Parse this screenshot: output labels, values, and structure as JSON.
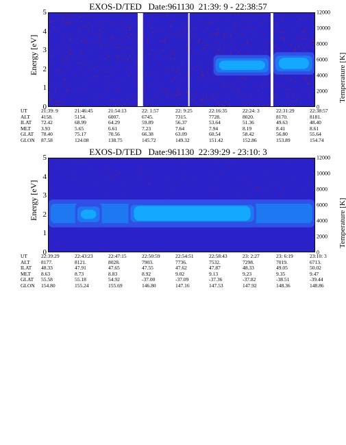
{
  "colors": {
    "background": "#2a22c8",
    "band_outer": "#2f4fe6",
    "band_mid": "#1e78f2",
    "band_core": "#15a8ff",
    "noise": "#9a1a3c",
    "gap": "#ffffff"
  },
  "chart_data": [
    {
      "type": "heatmap",
      "title": "EXOS-D/TED   Date:961130  21:39: 9 - 22:38:57",
      "ylabel": "Energy [eV]",
      "y2label": "Temperature [K]",
      "ylim": [
        0,
        5
      ],
      "y2lim": [
        0,
        12000
      ],
      "yticks": [
        "0",
        "1",
        "2",
        "3",
        "4",
        "5"
      ],
      "y2ticks": [
        "0",
        "2000",
        "4000",
        "6000",
        "8000",
        "10000",
        "12000"
      ],
      "xlim": [
        0,
        1
      ],
      "data_gaps": [
        [
          0.335,
          0.355
        ],
        [
          0.525,
          0.53
        ],
        [
          0.835,
          0.845
        ]
      ],
      "band": {
        "segments": [
          {
            "x_start": 0.62,
            "x_end": 0.835,
            "y_center": 2.2,
            "y_half": 0.55,
            "core_half": 0.25
          },
          {
            "x_start": 0.845,
            "x_end": 1.0,
            "y_center": 2.3,
            "y_half": 0.6,
            "core_half": 0.3
          }
        ]
      },
      "noise_fill": 0.55,
      "rows": [
        {
          "label": "UT",
          "values": [
            "21:39: 9",
            "21:46:45",
            "21:54:13",
            "22: 1:57",
            "22: 9:25",
            "22:16:35",
            "22:24: 3",
            "22:31:29",
            "22:38:57"
          ]
        },
        {
          "label": "ALT",
          "values": [
            "4158.",
            "5154.",
            "6007.",
            "6745.",
            "7315.",
            "7728.",
            "8020.",
            "8170.",
            "8181."
          ]
        },
        {
          "label": "ILAT",
          "values": [
            "72.42",
            "68.99",
            "64.29",
            "59.89",
            "56.37",
            "53.64",
            "51.36",
            "49.63",
            "48.40"
          ]
        },
        {
          "label": "MLT",
          "values": [
            "3.93",
            "5.65",
            "6.61",
            "7.23",
            "7.64",
            "7.94",
            "8.19",
            "8.41",
            "8.61"
          ]
        },
        {
          "label": "GLAT",
          "values": [
            "78.40",
            "75.17",
            "70.56",
            "66.38",
            "63.09",
            "60.54",
            "58.42",
            "56.80",
            "55.64"
          ]
        },
        {
          "label": "GLON",
          "values": [
            "87.58",
            "124.08",
            "138.75",
            "145.72",
            "149.32",
            "151.42",
            "152.86",
            "153.89",
            "154.74"
          ]
        }
      ]
    },
    {
      "type": "heatmap",
      "title": "EXOS-D/TED   Date:961130  22:39:29 - 23:10: 3",
      "ylabel": "Energy [eV]",
      "y2label": "Temperature [K]",
      "ylim": [
        0,
        5
      ],
      "y2lim": [
        0,
        12000
      ],
      "yticks": [
        "0",
        "1",
        "2",
        "3",
        "4",
        "5"
      ],
      "y2ticks": [
        "0",
        "2000",
        "4000",
        "6000",
        "8000",
        "10000",
        "12000"
      ],
      "xlim": [
        0,
        1
      ],
      "data_gaps": [],
      "band": {
        "segments": [
          {
            "x_start": 0.0,
            "x_end": 1.0,
            "y_center": 2.05,
            "y_half": 0.75,
            "core_half": 0.0
          },
          {
            "x_start": 0.1,
            "x_end": 0.2,
            "y_center": 2.0,
            "y_half": 0.6,
            "core_half": 0.25
          },
          {
            "x_start": 0.3,
            "x_end": 0.78,
            "y_center": 2.05,
            "y_half": 0.65,
            "core_half": 0.4
          }
        ]
      },
      "noise_fill": 0.12,
      "rows": [
        {
          "label": "UT",
          "values": [
            "22:39:29",
            "22:43:23",
            "22:47:15",
            "22:50:59",
            "22:54:51",
            "22:58:43",
            "23: 2:27",
            "23: 6:19",
            "23:10: 3"
          ]
        },
        {
          "label": "ALT",
          "values": [
            "8177.",
            "8121.",
            "8028.",
            "7903.",
            "7736.",
            "7532.",
            "7298.",
            "7019.",
            "6713."
          ]
        },
        {
          "label": "ILAT",
          "values": [
            "48.33",
            "47.91",
            "47.65",
            "47.55",
            "47.62",
            "47.87",
            "48.33",
            "49.05",
            "50.02"
          ]
        },
        {
          "label": "MLT",
          "values": [
            "8.63",
            "8.73",
            "8.83",
            "8.92",
            "9.02",
            "9.13",
            "9.23",
            "9.35",
            "9.47"
          ]
        },
        {
          "label": "GLAT",
          "values": [
            "55.58",
            "55.18",
            "54.92",
            "-37.00",
            "-37.09",
            "-37.36",
            "-37.82",
            "-38.51",
            "-39.44"
          ]
        },
        {
          "label": "GLON",
          "values": [
            "154.80",
            "155.24",
            "155.69",
            "146.80",
            "147.16",
            "147.53",
            "147.92",
            "148.36",
            "148.86"
          ]
        }
      ]
    }
  ]
}
